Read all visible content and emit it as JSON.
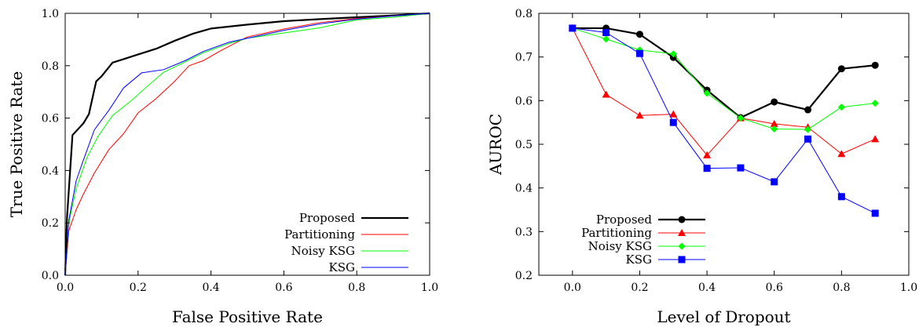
{
  "chart_data": [
    {
      "type": "line",
      "xlabel": "False Positive Rate",
      "ylabel": "True Positive Rate",
      "xlim": [
        0,
        1
      ],
      "ylim": [
        0,
        1
      ],
      "xticks": [
        "0.0",
        "0.2",
        "0.4",
        "0.6",
        "0.8",
        "1.0"
      ],
      "yticks": [
        "0.0",
        "0.2",
        "0.4",
        "0.6",
        "0.8",
        "1.0"
      ],
      "xtick_values": [
        0,
        0.2,
        0.4,
        0.6,
        0.8,
        1.0
      ],
      "ytick_values": [
        0,
        0.2,
        0.4,
        0.6,
        0.8,
        1.0
      ],
      "legend_position": "bottom-right",
      "series": [
        {
          "name": "Proposed",
          "color": "#000000",
          "marker": "none",
          "points": [
            [
              0,
              0
            ],
            [
              0.005,
              0.22
            ],
            [
              0.02,
              0.535
            ],
            [
              0.05,
              0.58
            ],
            [
              0.065,
              0.615
            ],
            [
              0.085,
              0.74
            ],
            [
              0.1,
              0.76
            ],
            [
              0.13,
              0.812
            ],
            [
              0.16,
              0.825
            ],
            [
              0.2,
              0.843
            ],
            [
              0.25,
              0.865
            ],
            [
              0.3,
              0.895
            ],
            [
              0.35,
              0.922
            ],
            [
              0.4,
              0.942
            ],
            [
              0.5,
              0.957
            ],
            [
              0.6,
              0.97
            ],
            [
              0.7,
              0.978
            ],
            [
              0.8,
              0.985
            ],
            [
              0.9,
              0.992
            ],
            [
              1.0,
              1.0
            ]
          ]
        },
        {
          "name": "Partitioning",
          "color": "#ff0000",
          "marker": "none",
          "points": [
            [
              0,
              0
            ],
            [
              0.01,
              0.17
            ],
            [
              0.03,
              0.25
            ],
            [
              0.05,
              0.31
            ],
            [
              0.08,
              0.39
            ],
            [
              0.12,
              0.48
            ],
            [
              0.16,
              0.54
            ],
            [
              0.2,
              0.62
            ],
            [
              0.25,
              0.675
            ],
            [
              0.3,
              0.74
            ],
            [
              0.34,
              0.8
            ],
            [
              0.38,
              0.82
            ],
            [
              0.43,
              0.86
            ],
            [
              0.5,
              0.91
            ],
            [
              0.6,
              0.94
            ],
            [
              0.7,
              0.965
            ],
            [
              0.8,
              0.98
            ],
            [
              0.9,
              0.99
            ],
            [
              1.0,
              1.0
            ]
          ]
        },
        {
          "name": "Noisy KSG",
          "color": "#00ff00",
          "marker": "none",
          "points": [
            [
              0,
              0
            ],
            [
              0.01,
              0.2
            ],
            [
              0.03,
              0.33
            ],
            [
              0.06,
              0.45
            ],
            [
              0.09,
              0.53
            ],
            [
              0.13,
              0.61
            ],
            [
              0.18,
              0.665
            ],
            [
              0.22,
              0.715
            ],
            [
              0.27,
              0.775
            ],
            [
              0.33,
              0.815
            ],
            [
              0.38,
              0.85
            ],
            [
              0.45,
              0.885
            ],
            [
              0.5,
              0.905
            ],
            [
              0.6,
              0.925
            ],
            [
              0.7,
              0.945
            ],
            [
              0.8,
              0.975
            ],
            [
              0.9,
              0.985
            ],
            [
              1.0,
              1.0
            ]
          ]
        },
        {
          "name": "KSG",
          "color": "#0000ff",
          "marker": "none",
          "points": [
            [
              0,
              0
            ],
            [
              0.01,
              0.21
            ],
            [
              0.03,
              0.36
            ],
            [
              0.05,
              0.44
            ],
            [
              0.08,
              0.555
            ],
            [
              0.12,
              0.63
            ],
            [
              0.16,
              0.715
            ],
            [
              0.21,
              0.773
            ],
            [
              0.27,
              0.785
            ],
            [
              0.33,
              0.82
            ],
            [
              0.38,
              0.855
            ],
            [
              0.45,
              0.89
            ],
            [
              0.5,
              0.905
            ],
            [
              0.6,
              0.935
            ],
            [
              0.7,
              0.96
            ],
            [
              0.8,
              0.978
            ],
            [
              0.9,
              0.99
            ],
            [
              1.0,
              1.0
            ]
          ]
        }
      ]
    },
    {
      "type": "line",
      "xlabel": "Level of Dropout",
      "ylabel": "AUROC",
      "xlim": [
        -0.1,
        1.0
      ],
      "ylim": [
        0.2,
        0.8
      ],
      "xticks": [
        "0.0",
        "0.2",
        "0.4",
        "0.6",
        "0.8",
        "1.0"
      ],
      "yticks": [
        "0.2",
        "0.3",
        "0.4",
        "0.5",
        "0.6",
        "0.7",
        "0.8"
      ],
      "xtick_values": [
        0,
        0.2,
        0.4,
        0.6,
        0.8,
        1.0
      ],
      "ytick_values": [
        0.2,
        0.3,
        0.4,
        0.5,
        0.6,
        0.7,
        0.8
      ],
      "legend_position": "bottom-left",
      "x": [
        0.0,
        0.1,
        0.2,
        0.3,
        0.4,
        0.5,
        0.6,
        0.7,
        0.8,
        0.9
      ],
      "series": [
        {
          "name": "Proposed",
          "color": "#000000",
          "marker": "circle",
          "values": [
            0.766,
            0.766,
            0.752,
            0.699,
            0.624,
            0.561,
            0.597,
            0.579,
            0.673,
            0.681
          ]
        },
        {
          "name": "Partitioning",
          "color": "#ff0000",
          "marker": "triangle",
          "values": [
            0.766,
            0.614,
            0.566,
            0.569,
            0.475,
            0.56,
            0.547,
            0.539,
            0.478,
            0.512
          ]
        },
        {
          "name": "Noisy KSG",
          "color": "#00ff00",
          "marker": "diamond",
          "values": [
            0.766,
            0.741,
            0.716,
            0.707,
            0.617,
            0.56,
            0.535,
            0.534,
            0.585,
            0.594
          ]
        },
        {
          "name": "KSG",
          "color": "#0000ff",
          "marker": "square",
          "values": [
            0.766,
            0.756,
            0.708,
            0.55,
            0.445,
            0.446,
            0.414,
            0.512,
            0.38,
            0.342
          ]
        }
      ]
    }
  ]
}
